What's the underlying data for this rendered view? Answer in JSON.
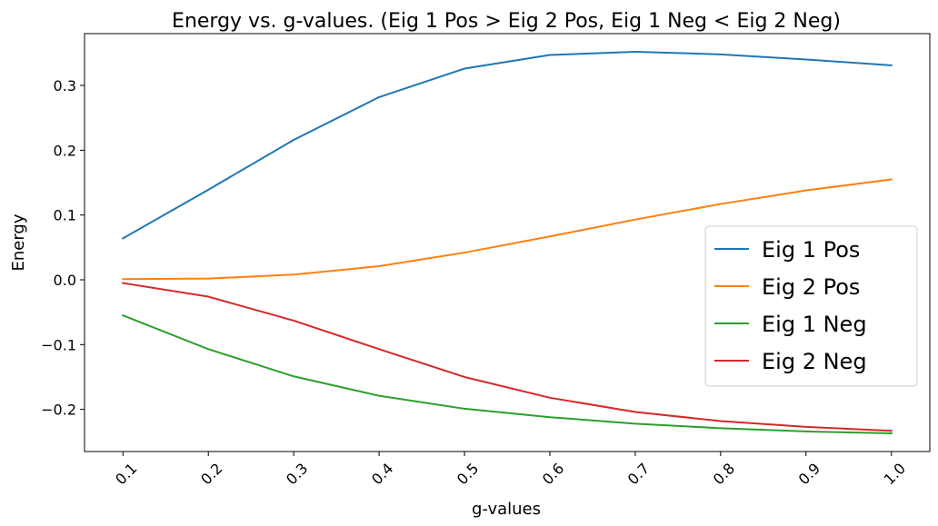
{
  "chart_data": {
    "type": "line",
    "title": "Energy vs. g-values. (Eig 1 Pos > Eig 2 Pos, Eig 1 Neg < Eig 2 Neg)",
    "xlabel": "g-values",
    "ylabel": "Energy",
    "x": [
      0.1,
      0.2,
      0.3,
      0.4,
      0.5,
      0.6,
      0.7,
      0.8,
      0.9,
      1.0
    ],
    "x_tick_labels": [
      "0.1",
      "0.2",
      "0.3",
      "0.4",
      "0.5",
      "0.6",
      "0.7",
      "0.8",
      "0.9",
      "1.0"
    ],
    "y_ticks": [
      -0.2,
      -0.1,
      0.0,
      0.1,
      0.2,
      0.3
    ],
    "y_tick_labels": [
      "−0.2",
      "−0.1",
      "0.0",
      "0.1",
      "0.2",
      "0.3"
    ],
    "xlim": [
      0.055,
      1.045
    ],
    "ylim": [
      -0.265,
      0.38
    ],
    "grid": false,
    "legend_position": "center-right",
    "series": [
      {
        "name": "Eig 1 Pos",
        "color": "#1f77b4",
        "values": [
          0.064,
          0.139,
          0.216,
          0.282,
          0.326,
          0.347,
          0.352,
          0.348,
          0.34,
          0.331
        ]
      },
      {
        "name": "Eig 2 Pos",
        "color": "#ff7f0e",
        "values": [
          0.001,
          0.002,
          0.008,
          0.021,
          0.042,
          0.067,
          0.093,
          0.117,
          0.138,
          0.155
        ]
      },
      {
        "name": "Eig 1 Neg",
        "color": "#2ca02c",
        "values": [
          -0.055,
          -0.107,
          -0.149,
          -0.179,
          -0.199,
          -0.212,
          -0.222,
          -0.229,
          -0.234,
          -0.237
        ]
      },
      {
        "name": "Eig 2 Neg",
        "color": "#d62728",
        "values": [
          -0.005,
          -0.026,
          -0.063,
          -0.107,
          -0.15,
          -0.182,
          -0.204,
          -0.218,
          -0.227,
          -0.233
        ]
      }
    ]
  }
}
